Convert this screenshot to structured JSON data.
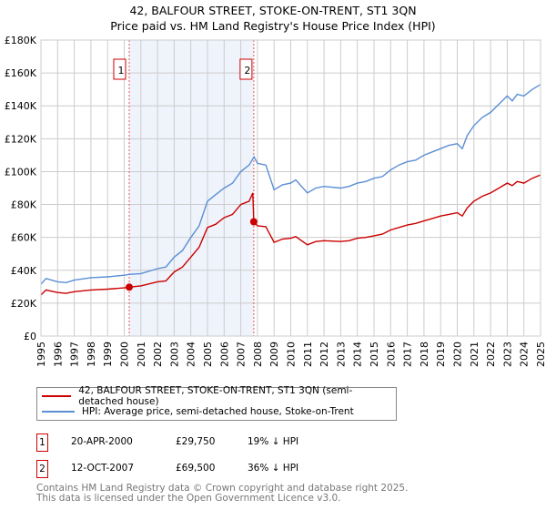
{
  "title_line1": "42, BALFOUR STREET, STOKE-ON-TRENT, ST1 3QN",
  "title_line2": "Price paid vs. HM Land Registry's House Price Index (HPI)",
  "colors": {
    "price": "#cc0000",
    "hpi": "#5b8fd4",
    "shade": "#eef3fc",
    "grid": "#cccccc"
  },
  "chart_data": {
    "type": "line",
    "title": "Price paid vs. HM Land Registry's House Price Index (HPI)",
    "xlim": [
      1995,
      2025
    ],
    "ylim": [
      0,
      180000
    ],
    "yticks": [
      "£0",
      "£20K",
      "£40K",
      "£60K",
      "£80K",
      "£100K",
      "£120K",
      "£140K",
      "£160K",
      "£180K"
    ],
    "xticks": [
      "1995",
      "1996",
      "1997",
      "1998",
      "1999",
      "2000",
      "2001",
      "2002",
      "2003",
      "2004",
      "2005",
      "2006",
      "2007",
      "2008",
      "2009",
      "2010",
      "2011",
      "2012",
      "2013",
      "2014",
      "2015",
      "2016",
      "2017",
      "2018",
      "2019",
      "2020",
      "2021",
      "2022",
      "2023",
      "2024",
      "2025"
    ],
    "grid": true,
    "shaded_range": [
      2000.3,
      2007.78
    ],
    "sales": [
      {
        "label": "1",
        "x": 2000.3,
        "y": 29750
      },
      {
        "label": "2",
        "x": 2007.78,
        "y": 69500
      }
    ],
    "series": [
      {
        "name": "42, BALFOUR STREET, STOKE-ON-TRENT, ST1 3QN (semi-detached house)",
        "color": "#cc0000",
        "points": [
          [
            1995,
            25
          ],
          [
            1995.3,
            28
          ],
          [
            1996,
            26.5
          ],
          [
            1996.5,
            26
          ],
          [
            1997,
            27
          ],
          [
            1998,
            28
          ],
          [
            1999,
            28.5
          ],
          [
            2000,
            29.3
          ],
          [
            2000.3,
            29.75
          ],
          [
            2001,
            30.5
          ],
          [
            2002,
            33
          ],
          [
            2002.5,
            33.5
          ],
          [
            2003,
            39
          ],
          [
            2003.5,
            42
          ],
          [
            2004,
            48
          ],
          [
            2004.5,
            54
          ],
          [
            2005,
            66
          ],
          [
            2005.5,
            68
          ],
          [
            2006,
            72
          ],
          [
            2006.5,
            74
          ],
          [
            2007,
            80
          ],
          [
            2007.5,
            82
          ],
          [
            2007.72,
            87
          ],
          [
            2007.78,
            69.5
          ],
          [
            2008,
            67
          ],
          [
            2008.5,
            66.5
          ],
          [
            2009,
            57
          ],
          [
            2009.5,
            59
          ],
          [
            2010,
            59.5
          ],
          [
            2010.3,
            60.5
          ],
          [
            2011,
            55.5
          ],
          [
            2011.5,
            57.5
          ],
          [
            2012,
            58
          ],
          [
            2013,
            57.5
          ],
          [
            2013.5,
            58
          ],
          [
            2014,
            59.5
          ],
          [
            2014.5,
            60
          ],
          [
            2015,
            61
          ],
          [
            2015.5,
            62
          ],
          [
            2016,
            64.5
          ],
          [
            2016.5,
            66
          ],
          [
            2017,
            67.5
          ],
          [
            2017.5,
            68.5
          ],
          [
            2018,
            70
          ],
          [
            2018.5,
            71.5
          ],
          [
            2019,
            73
          ],
          [
            2019.5,
            74
          ],
          [
            2020,
            75
          ],
          [
            2020.3,
            73
          ],
          [
            2020.6,
            78
          ],
          [
            2021,
            82
          ],
          [
            2021.5,
            85
          ],
          [
            2022,
            87
          ],
          [
            2022.5,
            90
          ],
          [
            2023,
            93
          ],
          [
            2023.3,
            91.5
          ],
          [
            2023.6,
            94
          ],
          [
            2024,
            93
          ],
          [
            2024.5,
            96
          ],
          [
            2025,
            98
          ]
        ]
      },
      {
        "name": "HPI: Average price, semi-detached house, Stoke-on-Trent",
        "color": "#5b8fd4",
        "points": [
          [
            1995,
            31.5
          ],
          [
            1995.3,
            35
          ],
          [
            1996,
            33
          ],
          [
            1996.5,
            32.5
          ],
          [
            1997,
            34
          ],
          [
            1998,
            35.5
          ],
          [
            1999,
            36
          ],
          [
            2000,
            37
          ],
          [
            2000.3,
            37.5
          ],
          [
            2001,
            38
          ],
          [
            2002,
            41
          ],
          [
            2002.5,
            42
          ],
          [
            2003,
            48
          ],
          [
            2003.5,
            52
          ],
          [
            2004,
            60
          ],
          [
            2004.5,
            67
          ],
          [
            2005,
            82
          ],
          [
            2005.5,
            86
          ],
          [
            2006,
            90
          ],
          [
            2006.5,
            93
          ],
          [
            2007,
            100
          ],
          [
            2007.5,
            104
          ],
          [
            2007.8,
            109
          ],
          [
            2008,
            105
          ],
          [
            2008.5,
            104
          ],
          [
            2009,
            89
          ],
          [
            2009.5,
            92
          ],
          [
            2010,
            93
          ],
          [
            2010.3,
            95
          ],
          [
            2011,
            87
          ],
          [
            2011.5,
            90
          ],
          [
            2012,
            91
          ],
          [
            2013,
            90
          ],
          [
            2013.5,
            91
          ],
          [
            2014,
            93
          ],
          [
            2014.5,
            94
          ],
          [
            2015,
            96
          ],
          [
            2015.5,
            97
          ],
          [
            2016,
            101
          ],
          [
            2016.5,
            104
          ],
          [
            2017,
            106
          ],
          [
            2017.5,
            107
          ],
          [
            2018,
            110
          ],
          [
            2018.5,
            112
          ],
          [
            2019,
            114
          ],
          [
            2019.5,
            116
          ],
          [
            2020,
            117
          ],
          [
            2020.3,
            114
          ],
          [
            2020.6,
            122
          ],
          [
            2021,
            128
          ],
          [
            2021.5,
            133
          ],
          [
            2022,
            136
          ],
          [
            2022.5,
            141
          ],
          [
            2023,
            146
          ],
          [
            2023.3,
            143
          ],
          [
            2023.6,
            147
          ],
          [
            2024,
            146
          ],
          [
            2024.5,
            150
          ],
          [
            2025,
            153
          ]
        ]
      }
    ],
    "y_units_note": "points y in thousands of pounds"
  },
  "legend": {
    "price": "42, BALFOUR STREET, STOKE-ON-TRENT, ST1 3QN (semi-detached house)",
    "hpi": "HPI: Average price, semi-detached house, Stoke-on-Trent"
  },
  "transactions": [
    {
      "num": "1",
      "date": "20-APR-2000",
      "price": "£29,750",
      "delta": "19% ↓ HPI"
    },
    {
      "num": "2",
      "date": "12-OCT-2007",
      "price": "£69,500",
      "delta": "36% ↓ HPI"
    }
  ],
  "footer": {
    "line1": "Contains HM Land Registry data © Crown copyright and database right 2025.",
    "line2": "This data is licensed under the Open Government Licence v3.0."
  }
}
